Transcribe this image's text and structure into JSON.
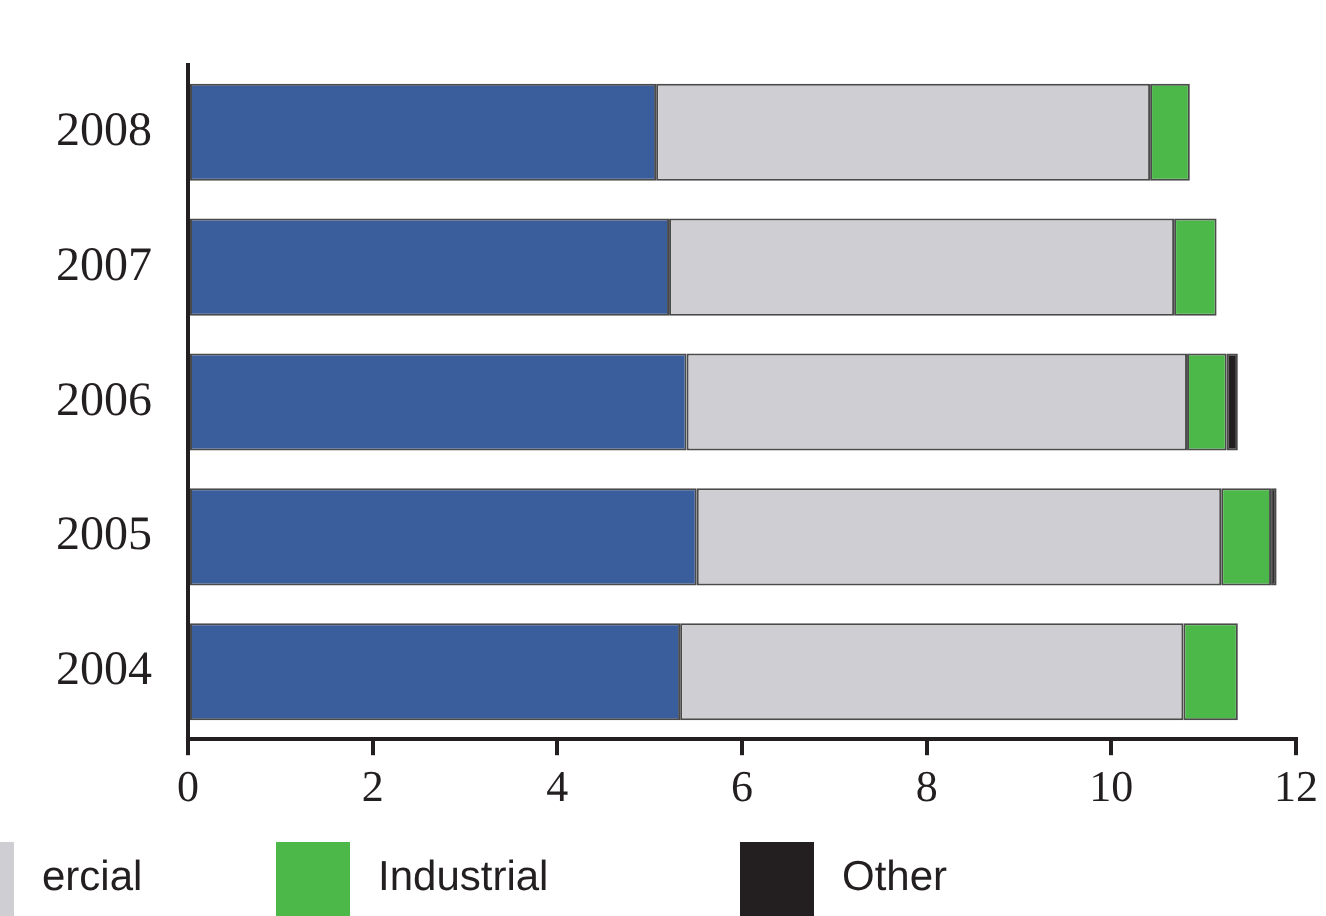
{
  "chart_data": {
    "type": "bar",
    "orientation": "horizontal",
    "stacked": true,
    "categories": [
      "2008",
      "2007",
      "2006",
      "2005",
      "2004"
    ],
    "series": [
      {
        "color": "#3a5d9c",
        "values": [
          5.07,
          5.21,
          5.4,
          5.51,
          5.33
        ]
      },
      {
        "name": "ercial",
        "color": "#cfcfd3",
        "values": [
          5.35,
          5.47,
          5.42,
          5.68,
          5.45
        ]
      },
      {
        "name": "Industrial",
        "color": "#4cb84a",
        "values": [
          0.43,
          0.46,
          0.43,
          0.54,
          0.59
        ]
      },
      {
        "name": "Other",
        "color": "#231f20",
        "values": [
          0,
          0,
          0.12,
          0.06,
          0
        ]
      }
    ],
    "xlim": [
      0,
      12
    ],
    "xticks": [
      0,
      2,
      4,
      6,
      8,
      10,
      12
    ],
    "grid": false,
    "legend": "bottom"
  }
}
